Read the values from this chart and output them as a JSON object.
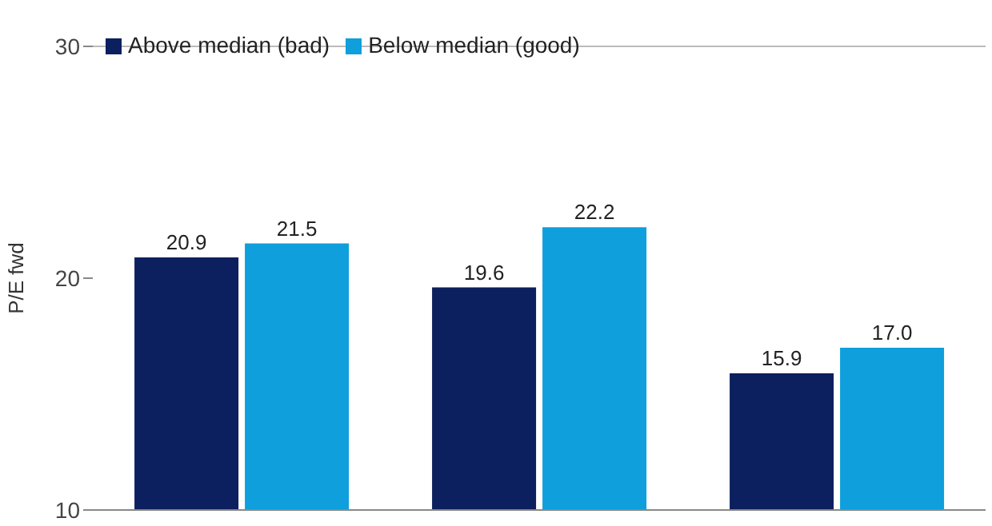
{
  "chart_data": {
    "type": "bar",
    "ylabel": "P/E fwd",
    "categories": [
      null,
      null,
      null
    ],
    "series": [
      {
        "name": "Above median (bad)",
        "color": "#0c1f5e",
        "values": [
          20.9,
          19.6,
          15.9
        ],
        "value_labels": [
          "20.9",
          "19.6",
          "15.9"
        ]
      },
      {
        "name": "Below median (good)",
        "color": "#0e9fdc",
        "values": [
          21.5,
          22.2,
          17.0
        ],
        "value_labels": [
          "21.5",
          "22.2",
          "17.0"
        ]
      }
    ],
    "ylim": [
      10,
      30
    ],
    "yticks": [
      10,
      20,
      30
    ],
    "legend": "top left",
    "grid": false
  }
}
